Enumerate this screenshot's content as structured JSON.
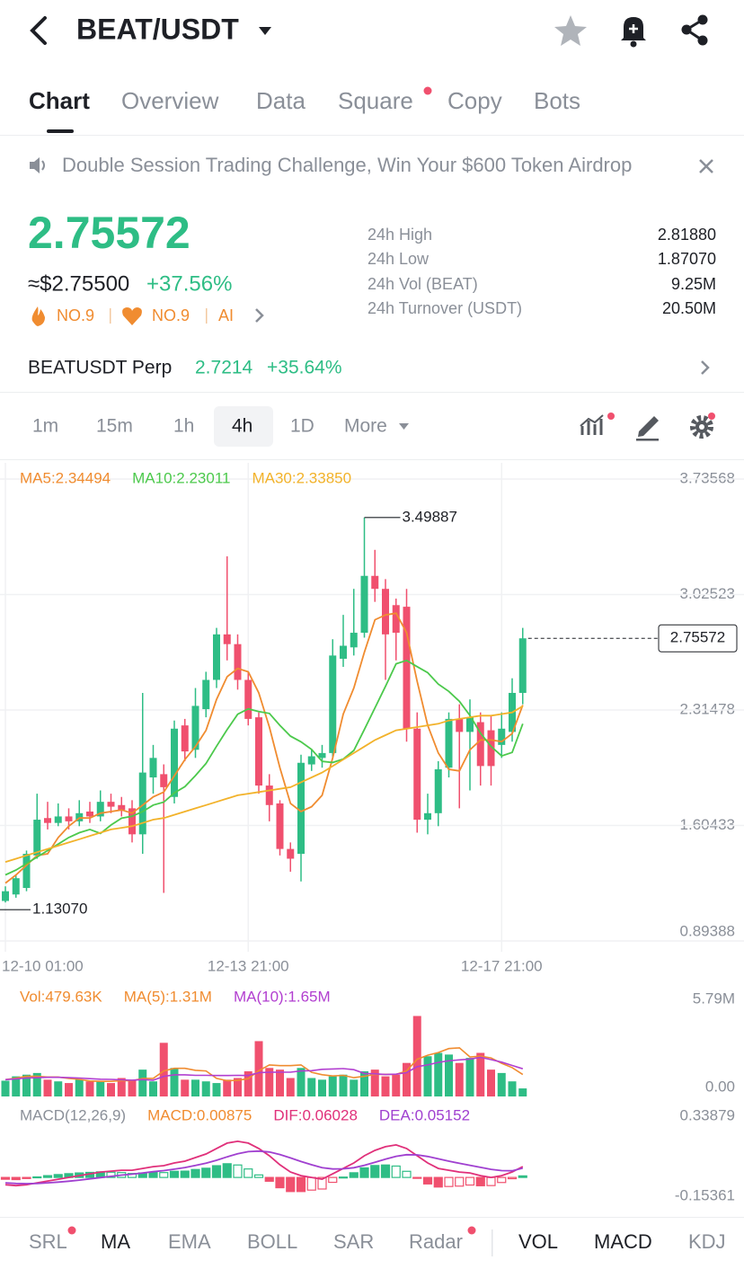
{
  "header": {
    "title": "BEAT/USDT"
  },
  "tabs": [
    "Chart",
    "Overview",
    "Data",
    "Square",
    "Copy",
    "Bots"
  ],
  "banner": "Double Session Trading Challenge, Win Your $600 Token Airdrop",
  "price": {
    "last": "2.75572",
    "usd": "≈$2.75500",
    "change": "+37.56%",
    "badges": [
      "NO.9",
      "NO.9",
      "AI"
    ]
  },
  "stats": [
    {
      "label": "24h High",
      "value": "2.81880"
    },
    {
      "label": "24h Low",
      "value": "1.87070"
    },
    {
      "label": "24h Vol (BEAT)",
      "value": "9.25M"
    },
    {
      "label": "24h Turnover (USDT)",
      "value": "20.50M"
    }
  ],
  "perp": {
    "name": "BEATUSDT Perp",
    "price": "2.7214",
    "change": "+35.64%"
  },
  "timeframes": [
    "1m",
    "15m",
    "1h",
    "4h",
    "1D",
    "More"
  ],
  "indicators": [
    "SRL",
    "MA",
    "EMA",
    "BOLL",
    "SAR",
    "Radar",
    "VOL",
    "MACD",
    "KDJ"
  ],
  "chart_data": [
    {
      "type": "candlestick",
      "up_color": "#2ebd85",
      "down_color": "#f0506e",
      "grid": true,
      "categories": [
        "12-10 01:00",
        null,
        null,
        null,
        null,
        null,
        null,
        null,
        null,
        null,
        null,
        null,
        null,
        null,
        null,
        null,
        null,
        null,
        null,
        null,
        null,
        null,
        null,
        "12-13 21:00",
        null,
        null,
        null,
        null,
        null,
        null,
        null,
        null,
        null,
        null,
        null,
        null,
        null,
        null,
        null,
        null,
        null,
        null,
        null,
        null,
        null,
        null,
        null,
        "12-17 21:00",
        null,
        null
      ],
      "open": [
        1.14,
        1.18,
        1.22,
        1.42,
        1.65,
        1.62,
        1.66,
        1.63,
        1.69,
        1.66,
        1.75,
        1.73,
        1.71,
        1.55,
        1.9,
        1.92,
        1.78,
        2.22,
        2.07,
        2.32,
        2.5,
        2.78,
        2.72,
        2.5,
        2.27,
        1.85,
        1.74,
        1.46,
        1.43,
        1.98,
        2.02,
        2.05,
        2.63,
        2.7,
        2.79,
        3.14,
        3.06,
        2.96,
        2.95,
        2.2,
        1.64,
        1.68,
        1.96,
        2.26,
        2.18,
        2.24,
        2.19,
        2.1,
        2.18,
        2.42
      ],
      "high": [
        1.23,
        1.3,
        1.45,
        1.8,
        1.75,
        1.74,
        1.71,
        1.76,
        1.75,
        1.82,
        1.8,
        1.78,
        1.76,
        2.42,
        2.1,
        1.98,
        2.25,
        2.26,
        2.45,
        2.55,
        2.82,
        3.26,
        2.78,
        2.55,
        2.3,
        1.92,
        1.76,
        1.5,
        2.04,
        2.07,
        2.1,
        2.75,
        2.9,
        3.06,
        3.49887,
        3.3,
        3.12,
        3.0,
        3.06,
        2.3,
        1.8,
        2.0,
        2.3,
        2.35,
        2.38,
        2.3,
        2.28,
        2.3,
        2.51,
        2.82
      ],
      "low": [
        1.1307,
        1.16,
        1.2,
        1.4,
        1.58,
        1.6,
        1.58,
        1.6,
        1.62,
        1.63,
        1.68,
        1.66,
        1.5,
        1.43,
        1.8,
        1.19,
        1.74,
        2.0,
        2.02,
        2.27,
        2.45,
        2.62,
        2.44,
        2.22,
        1.8,
        1.63,
        1.42,
        1.32,
        1.26,
        1.94,
        1.96,
        2.02,
        2.58,
        2.65,
        2.76,
        2.98,
        2.5,
        2.62,
        2.12,
        1.56,
        1.55,
        1.6,
        1.9,
        1.71,
        1.82,
        1.85,
        1.85,
        2.02,
        2.12,
        2.35
      ],
      "close": [
        1.2,
        1.28,
        1.43,
        1.64,
        1.62,
        1.66,
        1.63,
        1.68,
        1.66,
        1.75,
        1.72,
        1.7,
        1.55,
        1.93,
        2.02,
        1.84,
        2.2,
        2.06,
        2.34,
        2.5,
        2.78,
        2.72,
        2.5,
        2.26,
        1.85,
        1.73,
        1.46,
        1.4,
        1.99,
        2.03,
        2.05,
        2.65,
        2.71,
        2.79,
        3.14,
        3.06,
        2.78,
        2.79,
        2.2,
        1.64,
        1.68,
        1.95,
        2.26,
        2.18,
        2.27,
        1.97,
        1.97,
        2.2,
        2.42,
        2.75572
      ],
      "min_label": "1.13070",
      "series": [
        {
          "name": "MA5:2.34494",
          "color": "#f08c30",
          "values": [
            1.25,
            1.3,
            1.36,
            1.42,
            1.43,
            1.53,
            1.6,
            1.65,
            1.65,
            1.68,
            1.69,
            1.7,
            1.68,
            1.73,
            1.78,
            1.81,
            1.91,
            2.01,
            2.09,
            2.19,
            2.38,
            2.52,
            2.57,
            2.55,
            2.42,
            2.21,
            1.96,
            1.74,
            1.69,
            1.72,
            1.79,
            2.02,
            2.29,
            2.45,
            2.67,
            2.87,
            2.9,
            2.91,
            2.79,
            2.49,
            2.22,
            2.05,
            1.95,
            1.94,
            2.07,
            2.13,
            2.13,
            2.12,
            2.17,
            2.34494
          ]
        },
        {
          "name": "MA10:2.23011",
          "color": "#4cc94c",
          "values": [
            1.3,
            1.33,
            1.37,
            1.41,
            1.45,
            1.49,
            1.53,
            1.56,
            1.58,
            1.555,
            1.607,
            1.649,
            1.661,
            1.69,
            1.73,
            1.748,
            1.805,
            1.843,
            1.911,
            1.986,
            2.092,
            2.194,
            2.289,
            2.322,
            2.305,
            2.294,
            2.22,
            2.154,
            2.119,
            2.072,
            1.999,
            1.992,
            2.013,
            2.066,
            2.195,
            2.328,
            2.46,
            2.599,
            2.62,
            2.581,
            2.544,
            2.474,
            2.429,
            2.368,
            2.281,
            2.172,
            2.091,
            2.032,
            2.054,
            2.23011
          ]
        },
        {
          "name": "MA30:2.33850",
          "color": "#f2b22a",
          "values": [
            1.38,
            1.4,
            1.42,
            1.44,
            1.46,
            1.48,
            1.5,
            1.52,
            1.54,
            1.56,
            1.58,
            1.59,
            1.6,
            1.62,
            1.64,
            1.65,
            1.67,
            1.69,
            1.71,
            1.73,
            1.75,
            1.77,
            1.79,
            1.8,
            1.81,
            1.82,
            1.83,
            1.84,
            1.87,
            1.9,
            1.93,
            1.97,
            2.01,
            2.05,
            2.09,
            2.13,
            2.16,
            2.19,
            2.2,
            2.21,
            2.22,
            2.23,
            2.25,
            2.26,
            2.27,
            2.28,
            2.28,
            2.29,
            2.3,
            2.3385
          ]
        }
      ],
      "ylim": [
        0.89388,
        3.73568
      ],
      "yticks": [
        3.73568,
        3.02523,
        2.31478,
        1.60433,
        0.89388
      ]
    },
    {
      "type": "volume",
      "grid": false,
      "series": [
        {
          "name": "Vol:479.63K",
          "color": "#f08c30",
          "values": [
            940000,
            1200000,
            1300000,
            1400000,
            1000000,
            900000,
            800000,
            1000000,
            900000,
            900000,
            800000,
            1100000,
            1000000,
            1600000,
            900000,
            3200000,
            1700000,
            1000000,
            1000000,
            900000,
            800000,
            1000000,
            1100000,
            1500000,
            3300000,
            1700000,
            1600000,
            1100000,
            1700000,
            1100000,
            1000000,
            1200000,
            1300000,
            1000000,
            1500000,
            1600000,
            1200000,
            1300000,
            2000000,
            4800000,
            2400000,
            2600000,
            2500000,
            2000000,
            2300000,
            2600000,
            1600000,
            1400000,
            900000,
            479630
          ]
        },
        {
          "name": "MA(5):1.31M",
          "color": "#f08c30",
          "values": [
            1000000,
            1100000,
            1200000,
            1200000,
            1160000,
            1160000,
            1080000,
            1020000,
            920000,
            900000,
            900000,
            940000,
            940000,
            1080000,
            1080000,
            1520000,
            1680000,
            1680000,
            1560000,
            1520000,
            1080000,
            940000,
            960000,
            1060000,
            1540000,
            1880000,
            1840000,
            1840000,
            1880000,
            1440000,
            1300000,
            1220000,
            1260000,
            1120000,
            1200000,
            1320000,
            1320000,
            1320000,
            1520000,
            2220000,
            2460000,
            2620000,
            2860000,
            2900000,
            2360000,
            2400000,
            2300000,
            1980000,
            1720000,
            1310000
          ]
        },
        {
          "name": "MA(10):1.65M",
          "color": "#b23fd0",
          "values": [
            1000000,
            1050000,
            1100000,
            1120000,
            1140000,
            1140000,
            1120000,
            1100000,
            1060000,
            1030000,
            1020000,
            990000,
            970000,
            1010000,
            970000,
            1200000,
            1290000,
            1290000,
            1260000,
            1260000,
            1250000,
            1250000,
            1260000,
            1250000,
            1420000,
            1440000,
            1450000,
            1450000,
            1520000,
            1540000,
            1620000,
            1640000,
            1660000,
            1600000,
            1370000,
            1350000,
            1310000,
            1330000,
            1420000,
            1780000,
            1880000,
            2030000,
            2130000,
            2180000,
            2230000,
            2330000,
            2200000,
            2050000,
            1850000,
            1650000
          ]
        }
      ],
      "ylim": [
        0,
        5790000
      ],
      "yticks": [
        {
          "value": 5790000,
          "label": "5.79M"
        },
        {
          "value": 0,
          "label": "0.00"
        }
      ]
    },
    {
      "type": "macd",
      "title": "MACD(12,26,9)",
      "grid": false,
      "series": [
        {
          "name": "MACD:0.00875",
          "color": "#f08c30",
          "values": [
            -0.01,
            -0.012,
            -0.006,
            0.003,
            0.01,
            0.016,
            0.021,
            0.025,
            0.028,
            0.031,
            0.029,
            0.027,
            0.022,
            0.025,
            0.028,
            0.027,
            0.034,
            0.035,
            0.044,
            0.051,
            0.065,
            0.076,
            0.069,
            0.047,
            0.014,
            -0.021,
            -0.057,
            -0.078,
            -0.078,
            -0.07,
            -0.064,
            -0.027,
            0.002,
            0.026,
            0.053,
            0.066,
            0.069,
            0.063,
            0.034,
            -0.005,
            -0.036,
            -0.053,
            -0.05,
            -0.048,
            -0.042,
            -0.046,
            -0.045,
            -0.028,
            -0.007,
            0.00875
          ]
        },
        {
          "name": "DIF:0.06028",
          "color": "#e0307a",
          "values": [
            -0.04,
            -0.045,
            -0.04,
            -0.03,
            -0.02,
            -0.01,
            0,
            0.01,
            0.02,
            0.03,
            0.035,
            0.04,
            0.04,
            0.05,
            0.06,
            0.065,
            0.08,
            0.09,
            0.11,
            0.13,
            0.16,
            0.19,
            0.2,
            0.19,
            0.16,
            0.12,
            0.07,
            0.03,
            0.01,
            0,
            -0.01,
            0.02,
            0.05,
            0.08,
            0.12,
            0.15,
            0.17,
            0.18,
            0.16,
            0.12,
            0.08,
            0.05,
            0.04,
            0.03,
            0.025,
            0.01,
            0,
            0.01,
            0.03,
            0.06028
          ]
        },
        {
          "name": "DEA:0.05152",
          "color": "#a040d0",
          "values": [
            -0.03,
            -0.033,
            -0.034,
            -0.033,
            -0.03,
            -0.026,
            -0.021,
            -0.015,
            -0.008,
            -0.001,
            0.006,
            0.013,
            0.018,
            0.025,
            0.032,
            0.038,
            0.046,
            0.055,
            0.066,
            0.079,
            0.095,
            0.114,
            0.131,
            0.143,
            0.146,
            0.141,
            0.127,
            0.108,
            0.088,
            0.07,
            0.054,
            0.047,
            0.048,
            0.054,
            0.067,
            0.084,
            0.101,
            0.117,
            0.126,
            0.125,
            0.116,
            0.103,
            0.09,
            0.078,
            0.067,
            0.056,
            0.045,
            0.038,
            0.037,
            0.05152
          ]
        }
      ],
      "ylim": [
        -0.15361,
        0.33879
      ],
      "yticks": [
        0.33879,
        -0.15361
      ]
    }
  ]
}
